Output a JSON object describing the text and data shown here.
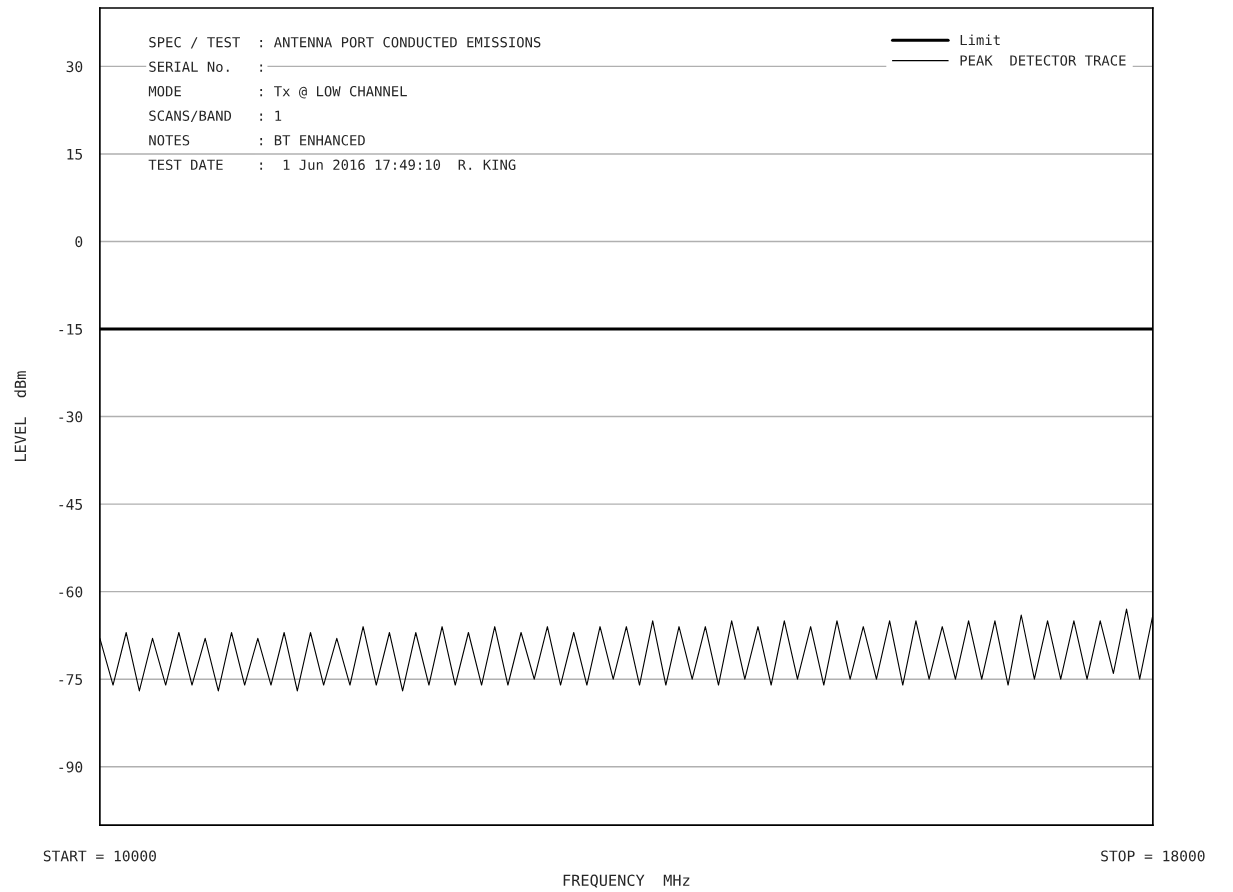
{
  "chart_data": {
    "type": "line",
    "xlabel": "FREQUENCY  MHz",
    "ylabel": "LEVEL  dBm",
    "annotations": [
      "SPEC / TEST  : ANTENNA PORT CONDUCTED EMISSIONS",
      "SERIAL No.   :",
      "MODE         : Tx @ LOW CHANNEL",
      "SCANS/BAND   : 1",
      "NOTES        : BT ENHANCED",
      "TEST DATE    :  1 Jun 2016 17:49:10  R. KING"
    ],
    "xlim": [
      10000,
      18000
    ],
    "xticks": [
      {
        "value": 10000,
        "label": "START = 10000"
      },
      {
        "value": 18000,
        "label": "STOP = 18000"
      }
    ],
    "ylim": [
      -100,
      40
    ],
    "yticks": [
      -90,
      -75,
      -60,
      -45,
      -30,
      -15,
      0,
      15,
      30
    ],
    "grid": "y",
    "legend": "top right",
    "series": [
      {
        "name": "Limit",
        "color": "#000000",
        "x": [
          10000,
          18000
        ],
        "values": [
          -15,
          -15
        ],
        "line_style": "solid"
      },
      {
        "name": "PEAK  DETECTOR TRACE",
        "color": "#000000",
        "x": [
          10000,
          10100,
          10200,
          10300,
          10400,
          10500,
          10600,
          10700,
          10800,
          10900,
          11000,
          11100,
          11200,
          11300,
          11400,
          11500,
          11600,
          11700,
          11800,
          11900,
          12000,
          12100,
          12200,
          12300,
          12400,
          12500,
          12600,
          12700,
          12800,
          12900,
          13000,
          13100,
          13200,
          13300,
          13400,
          13500,
          13600,
          13700,
          13800,
          13900,
          14000,
          14100,
          14200,
          14300,
          14400,
          14500,
          14600,
          14700,
          14800,
          14900,
          15000,
          15100,
          15200,
          15300,
          15400,
          15500,
          15600,
          15700,
          15800,
          15900,
          16000,
          16100,
          16200,
          16300,
          16400,
          16500,
          16600,
          16700,
          16800,
          16900,
          17000,
          17100,
          17200,
          17300,
          17400,
          17500,
          17600,
          17700,
          17800,
          17900,
          18000
        ],
        "values": [
          -68,
          -76,
          -67,
          -77,
          -68,
          -76,
          -67,
          -76,
          -68,
          -77,
          -67,
          -76,
          -68,
          -76,
          -67,
          -77,
          -67,
          -76,
          -68,
          -76,
          -66,
          -76,
          -67,
          -77,
          -67,
          -76,
          -66,
          -76,
          -67,
          -76,
          -66,
          -76,
          -67,
          -75,
          -66,
          -76,
          -67,
          -76,
          -66,
          -75,
          -66,
          -76,
          -65,
          -76,
          -66,
          -75,
          -66,
          -76,
          -65,
          -75,
          -66,
          -76,
          -65,
          -75,
          -66,
          -76,
          -65,
          -75,
          -66,
          -75,
          -65,
          -76,
          -65,
          -75,
          -66,
          -75,
          -65,
          -75,
          -65,
          -76,
          -64,
          -75,
          -65,
          -75,
          -65,
          -75,
          -65,
          -74,
          -63,
          -75,
          -64
        ]
      }
    ]
  }
}
